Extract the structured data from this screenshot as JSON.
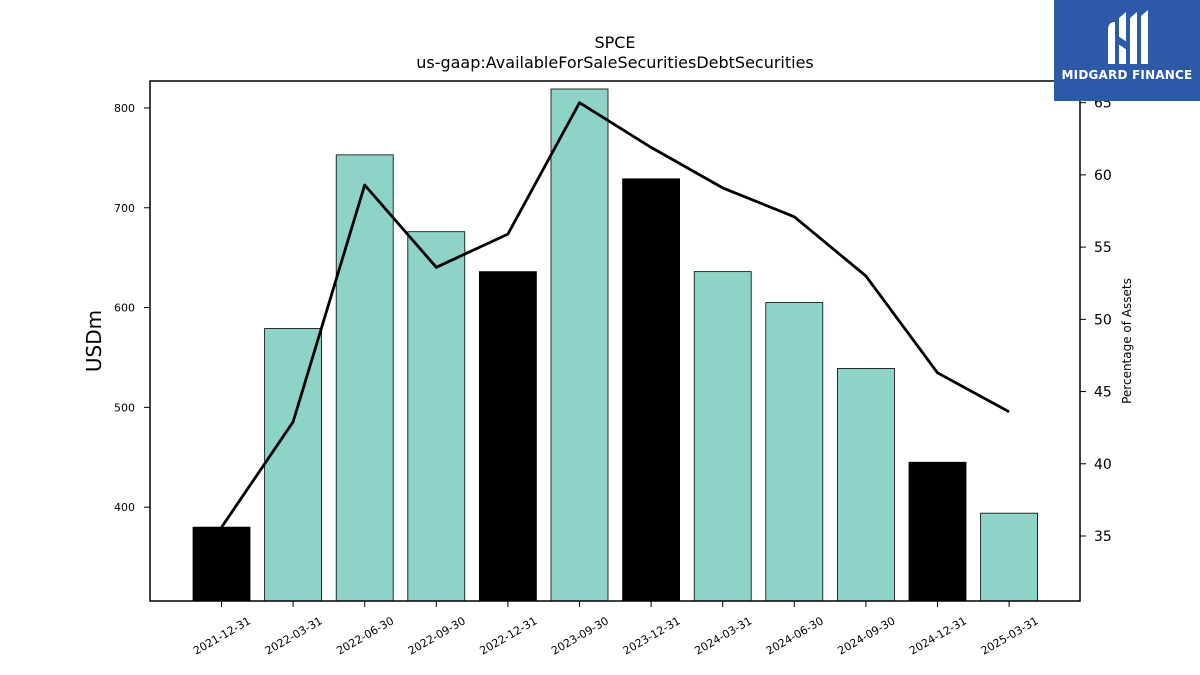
{
  "chart_data": {
    "type": "bar",
    "title": "SPCE",
    "subtitle": "us-gaap:AvailableForSaleSecuritiesDebtSecurities",
    "ylabel": "USDm",
    "y2label": "Percentage of Assets",
    "categories": [
      "2021-12-31",
      "2022-03-31",
      "2022-06-30",
      "2022-09-30",
      "2022-12-31",
      "2023-09-30",
      "2023-12-31",
      "2024-03-31",
      "2024-06-30",
      "2024-09-30",
      "2024-12-31",
      "2025-03-31"
    ],
    "series": [
      {
        "type": "bar",
        "values": [
          380,
          579,
          753,
          676,
          636,
          819,
          729,
          636,
          605,
          539,
          445,
          394
        ],
        "colors": [
          "#000000",
          "#8dd3c7",
          "#8dd3c7",
          "#8dd3c7",
          "#000000",
          "#8dd3c7",
          "#000000",
          "#8dd3c7",
          "#8dd3c7",
          "#8dd3c7",
          "#000000",
          "#8dd3c7"
        ]
      },
      {
        "type": "line",
        "axis": "right",
        "values": [
          35.6,
          42.9,
          59.3,
          53.6,
          55.9,
          65.0,
          61.9,
          59.1,
          57.1,
          53.0,
          46.3,
          43.6
        ],
        "color": "#000000"
      }
    ],
    "ylim": [
      306,
      827
    ],
    "y2lim": [
      30.5,
      66.5
    ],
    "yticks": [
      400,
      500,
      600,
      700,
      800
    ],
    "y2ticks": [
      35,
      40,
      45,
      50,
      55,
      60,
      65
    ],
    "grid": false
  },
  "logo": {
    "text": "MIDGARD FINANCE",
    "color": "#2d5aa8"
  }
}
